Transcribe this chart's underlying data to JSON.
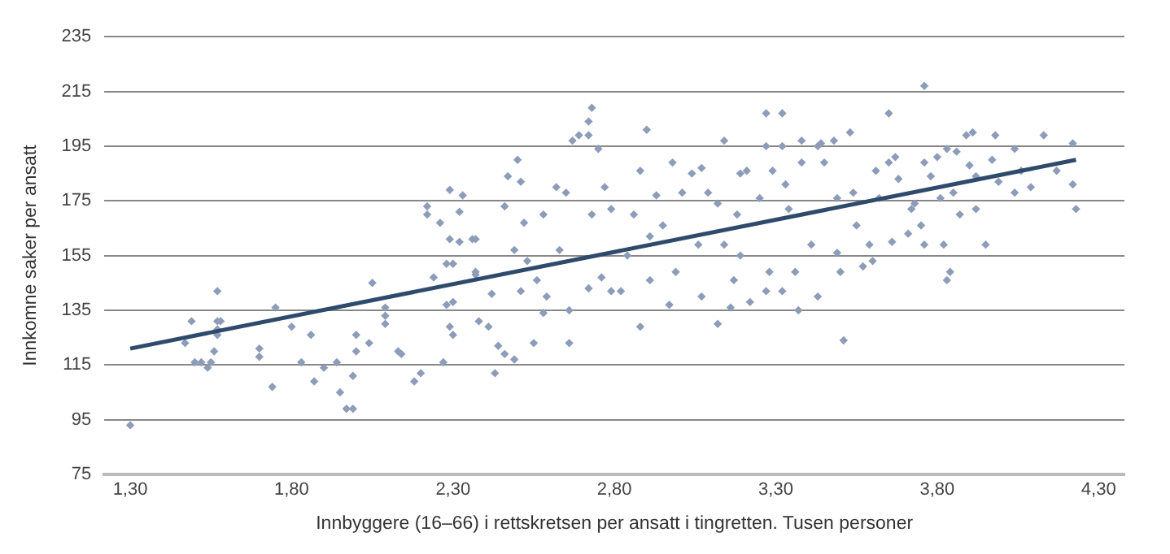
{
  "chart_data": {
    "type": "scatter",
    "xlabel": "Innbyggere (16–66) i rettskretsen per ansatt i tingretten. Tusen personer",
    "ylabel": "Innkomne saker per ansatt",
    "xlim": [
      1.22,
      4.38
    ],
    "xticks": [
      {
        "value": 1.3,
        "label": "1,30"
      },
      {
        "value": 1.8,
        "label": "1,80"
      },
      {
        "value": 2.3,
        "label": "2,30"
      },
      {
        "value": 2.8,
        "label": "2,80"
      },
      {
        "value": 3.3,
        "label": "3,30"
      },
      {
        "value": 3.8,
        "label": "3,80"
      },
      {
        "value": 4.3,
        "label": "4,30"
      }
    ],
    "ylim": [
      75,
      235
    ],
    "yticks": [
      75,
      95,
      115,
      135,
      155,
      175,
      195,
      215,
      235
    ],
    "grid": "y",
    "legend": false,
    "marker": "diamond",
    "series": [
      {
        "type": "scatter",
        "color": "#8d9db9",
        "x": [
          1.3,
          1.49,
          1.47,
          1.5,
          1.52,
          1.54,
          1.55,
          1.56,
          1.57,
          1.57,
          1.58,
          1.57,
          1.57,
          1.7,
          1.7,
          1.74,
          1.75,
          1.8,
          1.83,
          1.86,
          1.87,
          1.9,
          1.94,
          1.95,
          1.97,
          1.99,
          1.99,
          2.0,
          2.0,
          2.04,
          2.05,
          2.09,
          2.09,
          2.09,
          2.13,
          2.14,
          2.18,
          2.2,
          2.22,
          2.22,
          2.26,
          2.29,
          2.33,
          2.32,
          2.29,
          2.32,
          2.24,
          2.28,
          2.3,
          2.28,
          2.3,
          2.29,
          2.3,
          2.27,
          2.36,
          2.37,
          2.37,
          2.37,
          2.38,
          2.41,
          2.43,
          2.42,
          2.44,
          2.46,
          2.46,
          2.47,
          2.49,
          2.5,
          2.51,
          2.52,
          2.49,
          2.51,
          2.53,
          2.55,
          2.56,
          2.58,
          2.59,
          2.58,
          2.62,
          2.63,
          2.65,
          2.66,
          2.66,
          2.67,
          2.69,
          2.72,
          2.72,
          2.73,
          2.75,
          2.73,
          2.76,
          2.72,
          2.77,
          2.79,
          2.79,
          2.84,
          2.82,
          2.86,
          2.88,
          2.88,
          2.9,
          2.91,
          2.91,
          2.93,
          2.95,
          2.97,
          2.98,
          2.99,
          3.01,
          3.04,
          3.06,
          3.07,
          3.07,
          3.09,
          3.12,
          3.12,
          3.14,
          3.14,
          3.16,
          3.17,
          3.18,
          3.19,
          3.19,
          3.21,
          3.22,
          3.25,
          3.27,
          3.27,
          3.27,
          3.29,
          3.28,
          3.32,
          3.32,
          3.32,
          3.33,
          3.34,
          3.36,
          3.37,
          3.38,
          3.38,
          3.41,
          3.43,
          3.43,
          3.44,
          3.45,
          3.48,
          3.49,
          3.49,
          3.5,
          3.51,
          3.53,
          3.54,
          3.55,
          3.57,
          3.59,
          3.6,
          3.62,
          3.61,
          3.65,
          3.66,
          3.65,
          3.67,
          3.68,
          3.71,
          3.72,
          3.73,
          3.75,
          3.76,
          3.76,
          3.76,
          3.78,
          3.8,
          3.81,
          3.82,
          3.83,
          3.84,
          3.83,
          3.86,
          3.85,
          3.87,
          3.89,
          3.91,
          3.9,
          3.92,
          3.92,
          3.95,
          3.97,
          3.98,
          3.99,
          4.04,
          4.04,
          4.06,
          4.09,
          4.13,
          4.17,
          4.22,
          4.22,
          4.23
        ],
        "values": [
          93,
          131,
          123,
          116,
          116,
          114,
          116,
          120,
          142,
          131,
          131,
          126,
          128,
          121,
          118,
          107,
          136,
          129,
          116,
          126,
          109,
          114,
          116,
          105,
          99,
          99,
          111,
          120,
          126,
          123,
          145,
          136,
          130,
          133,
          120,
          119,
          109,
          112,
          173,
          170,
          167,
          179,
          177,
          171,
          161,
          160,
          147,
          152,
          152,
          137,
          138,
          129,
          126,
          116,
          161,
          149,
          161,
          148,
          131,
          129,
          112,
          141,
          122,
          119,
          173,
          184,
          117,
          190,
          182,
          167,
          157,
          142,
          153,
          123,
          146,
          170,
          140,
          134,
          180,
          157,
          178,
          123,
          135,
          197,
          199,
          199,
          204,
          209,
          194,
          170,
          147,
          143,
          180,
          172,
          142,
          155,
          142,
          170,
          129,
          186,
          201,
          146,
          162,
          177,
          166,
          137,
          189,
          149,
          178,
          185,
          159,
          187,
          140,
          178,
          130,
          174,
          159,
          197,
          136,
          146,
          170,
          185,
          155,
          186,
          138,
          176,
          207,
          195,
          142,
          186,
          149,
          207,
          195,
          142,
          181,
          172,
          149,
          135,
          197,
          189,
          159,
          195,
          140,
          196,
          189,
          197,
          176,
          156,
          149,
          124,
          200,
          178,
          166,
          151,
          159,
          153,
          176,
          186,
          207,
          160,
          189,
          191,
          183,
          163,
          172,
          174,
          166,
          217,
          189,
          159,
          184,
          191,
          176,
          159,
          146,
          149,
          194,
          193,
          178,
          170,
          199,
          200,
          188,
          184,
          172,
          159,
          190,
          199,
          182,
          194,
          178,
          186,
          180,
          199,
          186,
          196,
          181,
          172
        ]
      },
      {
        "type": "line",
        "color": "#2f4b6c",
        "x": [
          1.3,
          4.23
        ],
        "values": [
          121,
          190
        ],
        "marker": "none"
      }
    ]
  }
}
